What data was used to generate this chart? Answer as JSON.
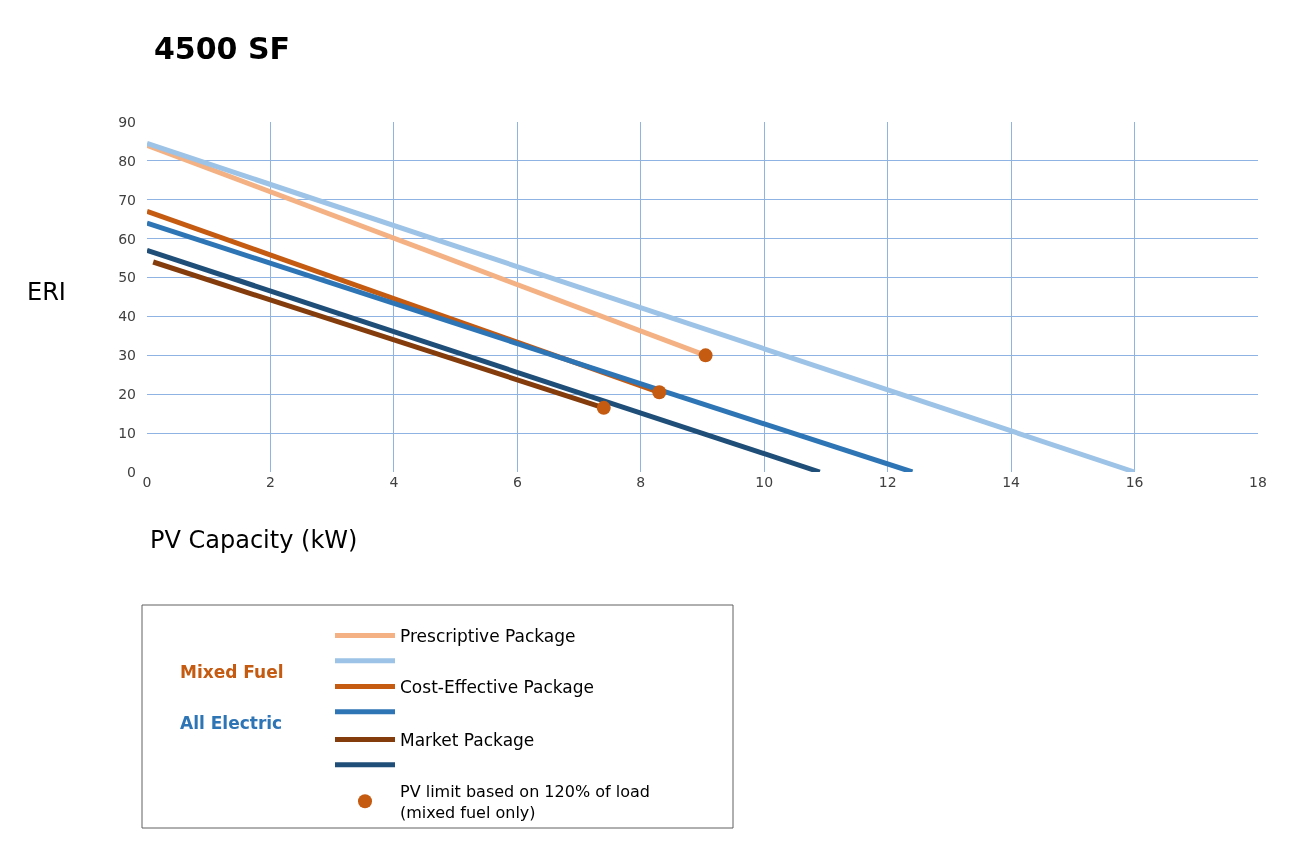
{
  "chart_data": {
    "type": "line",
    "title": "4500 SF",
    "xlabel": "PV Capacity (kW)",
    "ylabel": "ERI",
    "xlim": [
      0,
      18
    ],
    "xticks": [
      0,
      2,
      4,
      6,
      8,
      10,
      12,
      14,
      16,
      18
    ],
    "ylim": [
      0,
      90
    ],
    "yticks": [
      0,
      10,
      20,
      30,
      40,
      50,
      60,
      70,
      80,
      90
    ],
    "grid": true,
    "legend": "bottom left",
    "annotations": [
      "Mixed Fuel",
      "All Electric"
    ],
    "series": [
      {
        "name": "Prescriptive Package",
        "color": "#f4b183",
        "x": [
          0,
          9.05
        ],
        "values": [
          84,
          30
        ]
      },
      {
        "color": "#9dc3e6",
        "x": [
          0,
          16
        ],
        "values": [
          84.5,
          0
        ]
      },
      {
        "name": "Cost-Effective Package",
        "color": "#c55a11",
        "x": [
          0,
          8.3
        ],
        "values": [
          67,
          20.5
        ]
      },
      {
        "color": "#2e75b6",
        "x": [
          0,
          12.4
        ],
        "values": [
          64,
          0
        ]
      },
      {
        "name": "Market Package",
        "color": "#843c0c",
        "x": [
          0.1,
          7.4
        ],
        "values": [
          54,
          16.5
        ]
      },
      {
        "color": "#1f4e79",
        "x": [
          0,
          10.9
        ],
        "values": [
          57,
          0
        ]
      },
      {
        "name": "PV limit based on 120% of load\n(mixed fuel only)",
        "type": "scatter",
        "marker": "circle",
        "color": "#c55a11",
        "x": [
          9.05,
          8.3,
          7.4
        ],
        "values": [
          30,
          20.5,
          16.5
        ]
      }
    ]
  }
}
